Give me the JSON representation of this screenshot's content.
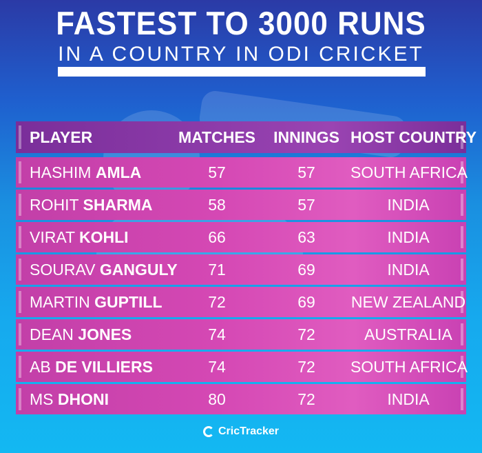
{
  "title": "FASTEST TO 3000 RUNS",
  "subtitle": "IN A COUNTRY IN ODI CRICKET",
  "columns": {
    "player": "PLAYER",
    "matches": "MATCHES",
    "innings": "INNINGS",
    "country": "HOST COUNTRY"
  },
  "rows": [
    {
      "first": "HASHIM",
      "last": "AMLA",
      "matches": "57",
      "innings": "57",
      "country": "SOUTH AFRICA"
    },
    {
      "first": "ROHIT",
      "last": "SHARMA",
      "matches": "58",
      "innings": "57",
      "country": "INDIA"
    },
    {
      "first": "VIRAT",
      "last": "KOHLI",
      "matches": "66",
      "innings": "63",
      "country": "INDIA"
    },
    {
      "first": "SOURAV",
      "last": "GANGULY",
      "matches": "71",
      "innings": "69",
      "country": "INDIA"
    },
    {
      "first": "MARTIN",
      "last": "GUPTILL",
      "matches": "72",
      "innings": "69",
      "country": "NEW ZEALAND"
    },
    {
      "first": "DEAN",
      "last": "JONES",
      "matches": "74",
      "innings": "72",
      "country": "AUSTRALIA"
    },
    {
      "first": "AB",
      "last": "DE VILLIERS",
      "matches": "74",
      "innings": "72",
      "country": "SOUTH AFRICA"
    },
    {
      "first": "MS",
      "last": "DHONI",
      "matches": "80",
      "innings": "72",
      "country": "INDIA"
    }
  ],
  "brand": {
    "name": "CricTracker",
    "icon": "crictracker-logo-icon"
  },
  "colors": {
    "row": "#d548b4",
    "header": "#8b3aa8",
    "background_top": "#2b3aa6",
    "background_bottom": "#13b8f2"
  }
}
